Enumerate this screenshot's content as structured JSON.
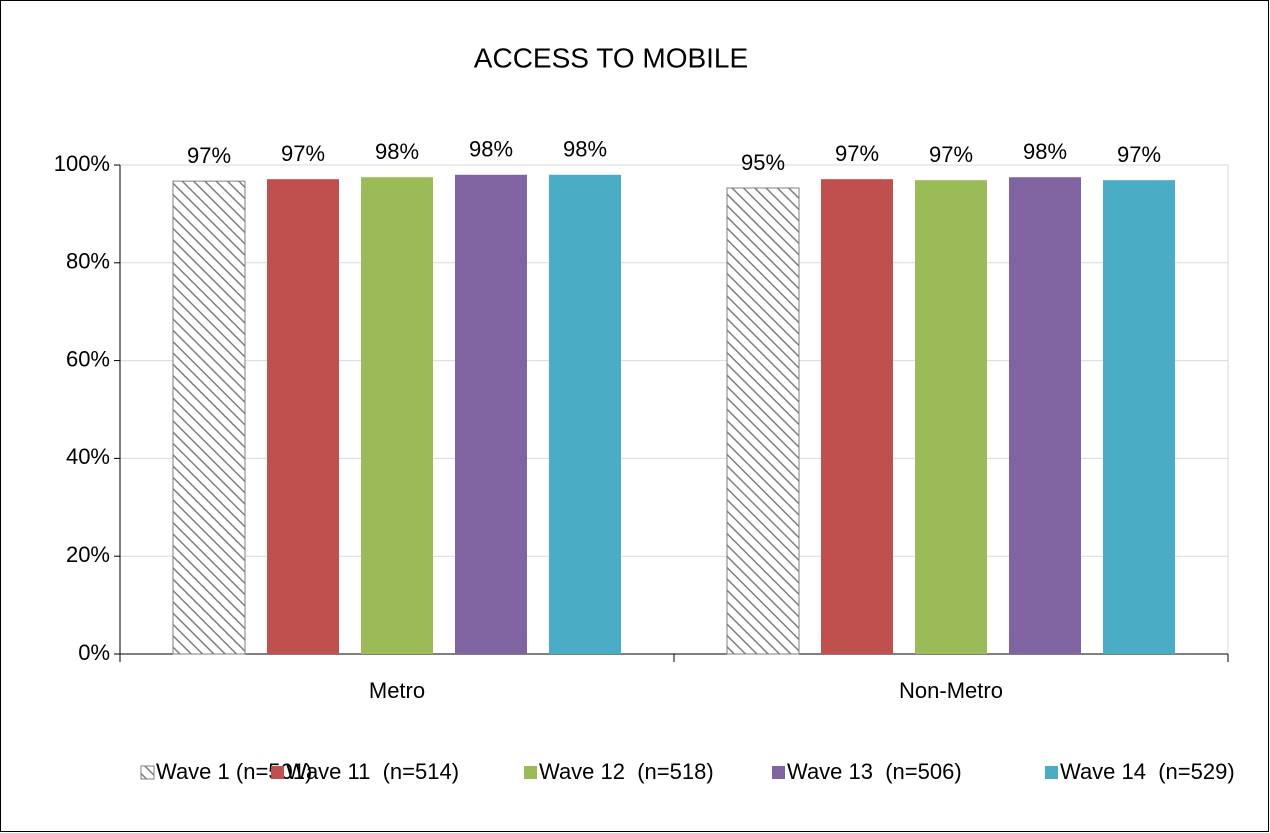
{
  "chart_data": {
    "type": "bar",
    "title": "ACCESS TO MOBILE",
    "categories": [
      "Metro",
      "Non-Metro"
    ],
    "series": [
      {
        "name": "Wave 1 (n=501)",
        "color": "#7f7f7f",
        "hatch": true,
        "values": [
          96.7,
          95.3
        ],
        "value_labels": [
          "97%",
          "95%"
        ]
      },
      {
        "name": "Wave 11  (n=514)",
        "color": "#c0504d",
        "values": [
          97.1,
          97.1
        ],
        "value_labels": [
          "97%",
          "97%"
        ]
      },
      {
        "name": "Wave 12  (n=518)",
        "color": "#9bbb59",
        "values": [
          97.5,
          96.9
        ],
        "value_labels": [
          "98%",
          "97%"
        ]
      },
      {
        "name": "Wave 13  (n=506)",
        "color": "#8064a2",
        "values": [
          98.0,
          97.5
        ],
        "value_labels": [
          "98%",
          "98%"
        ]
      },
      {
        "name": "Wave 14  (n=529)",
        "color": "#4bacc6",
        "values": [
          98.0,
          96.9
        ],
        "value_labels": [
          "98%",
          "97%"
        ]
      }
    ],
    "ylim": [
      0,
      100
    ],
    "yticks": [
      {
        "value": 0,
        "label": "0%"
      },
      {
        "value": 20,
        "label": "20%"
      },
      {
        "value": 40,
        "label": "40%"
      },
      {
        "value": 60,
        "label": "60%"
      },
      {
        "value": 80,
        "label": "80%"
      },
      {
        "value": 100,
        "label": "100%"
      }
    ],
    "grid": true,
    "legend": "bottom"
  }
}
